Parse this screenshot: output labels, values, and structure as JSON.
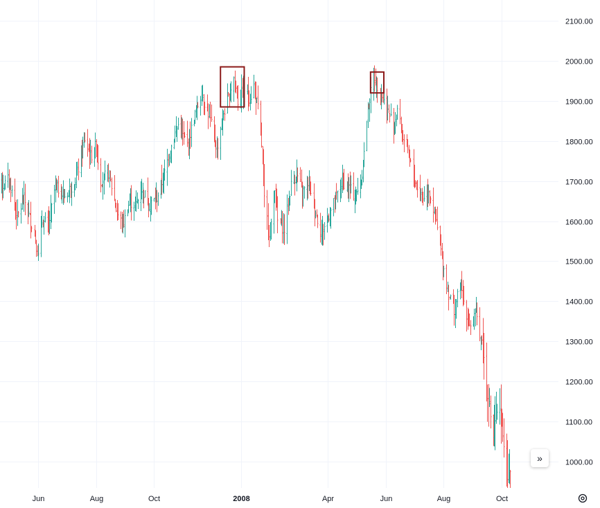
{
  "chart_data": {
    "type": "ohlc",
    "colors": {
      "up": "#26a69a",
      "down": "#ef5350",
      "grid": "#f0f3fa",
      "highlight": "#8b1a1a",
      "text": "#131722"
    },
    "y_axis": {
      "ticks": [
        1000,
        1100,
        1200,
        1300,
        1400,
        1500,
        1600,
        1700,
        1800,
        1900,
        2000,
        2100
      ],
      "tick_labels": [
        "1000.00",
        "1100.00",
        "1200.00",
        "1300.00",
        "1400.00",
        "1500.00",
        "1600.00",
        "1700.00",
        "1800.00",
        "1900.00",
        "2000.00",
        "2100.00"
      ],
      "range": [
        930,
        2140
      ]
    },
    "x_axis": {
      "labels": [
        {
          "text": "Jun",
          "month": "2007-06",
          "major": false
        },
        {
          "text": "Aug",
          "month": "2007-08",
          "major": false
        },
        {
          "text": "Oct",
          "month": "2007-10",
          "major": false
        },
        {
          "text": "2008",
          "month": "2008-01",
          "major": true
        },
        {
          "text": "Apr",
          "month": "2008-04",
          "major": false
        },
        {
          "text": "Jun",
          "month": "2008-06",
          "major": false
        },
        {
          "text": "Aug",
          "month": "2008-08",
          "major": false
        },
        {
          "text": "Oct",
          "month": "2008-10",
          "major": false
        }
      ]
    },
    "highlight_boxes": [
      {
        "from": "2007-12-10",
        "to": "2008-01-04",
        "low": 1885,
        "high": 1985
      },
      {
        "from": "2008-05-16",
        "to": "2008-05-30",
        "low": 1920,
        "high": 1972
      }
    ],
    "keyframes": [
      [
        "2007-04-13",
        1745
      ],
      [
        "2007-04-24",
        1685
      ],
      [
        "2007-05-01",
        1705
      ],
      [
        "2007-05-10",
        1610
      ],
      [
        "2007-05-17",
        1655
      ],
      [
        "2007-05-28",
        1570
      ],
      [
        "2007-06-01",
        1510
      ],
      [
        "2007-06-05",
        1600
      ],
      [
        "2007-06-12",
        1590
      ],
      [
        "2007-06-19",
        1690
      ],
      [
        "2007-06-28",
        1660
      ],
      [
        "2007-07-10",
        1700
      ],
      [
        "2007-07-20",
        1805
      ],
      [
        "2007-07-26",
        1760
      ],
      [
        "2007-08-01",
        1790
      ],
      [
        "2007-08-06",
        1700
      ],
      [
        "2007-08-14",
        1720
      ],
      [
        "2007-08-23",
        1620
      ],
      [
        "2007-08-29",
        1590
      ],
      [
        "2007-09-05",
        1650
      ],
      [
        "2007-09-12",
        1640
      ],
      [
        "2007-09-18",
        1680
      ],
      [
        "2007-09-26",
        1640
      ],
      [
        "2007-10-04",
        1660
      ],
      [
        "2007-10-12",
        1720
      ],
      [
        "2007-10-18",
        1780
      ],
      [
        "2007-10-26",
        1840
      ],
      [
        "2007-11-05",
        1790
      ],
      [
        "2007-11-12",
        1860
      ],
      [
        "2007-11-20",
        1920
      ],
      [
        "2007-11-28",
        1860
      ],
      [
        "2007-12-06",
        1780
      ],
      [
        "2007-12-13",
        1870
      ],
      [
        "2007-12-18",
        1905
      ],
      [
        "2007-12-24",
        1960
      ],
      [
        "2007-12-28",
        1900
      ],
      [
        "2008-01-04",
        1930
      ],
      [
        "2008-01-10",
        1905
      ],
      [
        "2008-01-14",
        1940
      ],
      [
        "2008-01-18",
        1880
      ],
      [
        "2008-01-22",
        1790
      ],
      [
        "2008-01-25",
        1650
      ],
      [
        "2008-01-31",
        1560
      ],
      [
        "2008-02-05",
        1690
      ],
      [
        "2008-02-08",
        1600
      ],
      [
        "2008-02-15",
        1580
      ],
      [
        "2008-02-22",
        1690
      ],
      [
        "2008-02-28",
        1720
      ],
      [
        "2008-03-05",
        1670
      ],
      [
        "2008-03-12",
        1700
      ],
      [
        "2008-03-18",
        1630
      ],
      [
        "2008-03-25",
        1570
      ],
      [
        "2008-04-01",
        1610
      ],
      [
        "2008-04-08",
        1650
      ],
      [
        "2008-04-16",
        1700
      ],
      [
        "2008-04-24",
        1680
      ],
      [
        "2008-04-30",
        1660
      ],
      [
        "2008-05-06",
        1700
      ],
      [
        "2008-05-09",
        1770
      ],
      [
        "2008-05-13",
        1880
      ],
      [
        "2008-05-19",
        1960
      ],
      [
        "2008-05-23",
        1940
      ],
      [
        "2008-05-28",
        1910
      ],
      [
        "2008-06-02",
        1880
      ],
      [
        "2008-06-09",
        1840
      ],
      [
        "2008-06-13",
        1880
      ],
      [
        "2008-06-18",
        1820
      ],
      [
        "2008-06-26",
        1750
      ],
      [
        "2008-07-03",
        1690
      ],
      [
        "2008-07-10",
        1660
      ],
      [
        "2008-07-16",
        1680
      ],
      [
        "2008-07-22",
        1620
      ],
      [
        "2008-07-28",
        1540
      ],
      [
        "2008-08-01",
        1480
      ],
      [
        "2008-08-06",
        1420
      ],
      [
        "2008-08-12",
        1380
      ],
      [
        "2008-08-18",
        1440
      ],
      [
        "2008-08-22",
        1400
      ],
      [
        "2008-08-28",
        1340
      ],
      [
        "2008-09-04",
        1370
      ],
      [
        "2008-09-10",
        1300
      ],
      [
        "2008-09-16",
        1170
      ],
      [
        "2008-09-22",
        1060
      ],
      [
        "2008-09-25",
        1110
      ],
      [
        "2008-09-29",
        1120
      ],
      [
        "2008-10-03",
        1050
      ],
      [
        "2008-10-08",
        950
      ],
      [
        "2008-10-10",
        980
      ]
    ]
  },
  "ui": {
    "scroll_button_label": "»"
  }
}
